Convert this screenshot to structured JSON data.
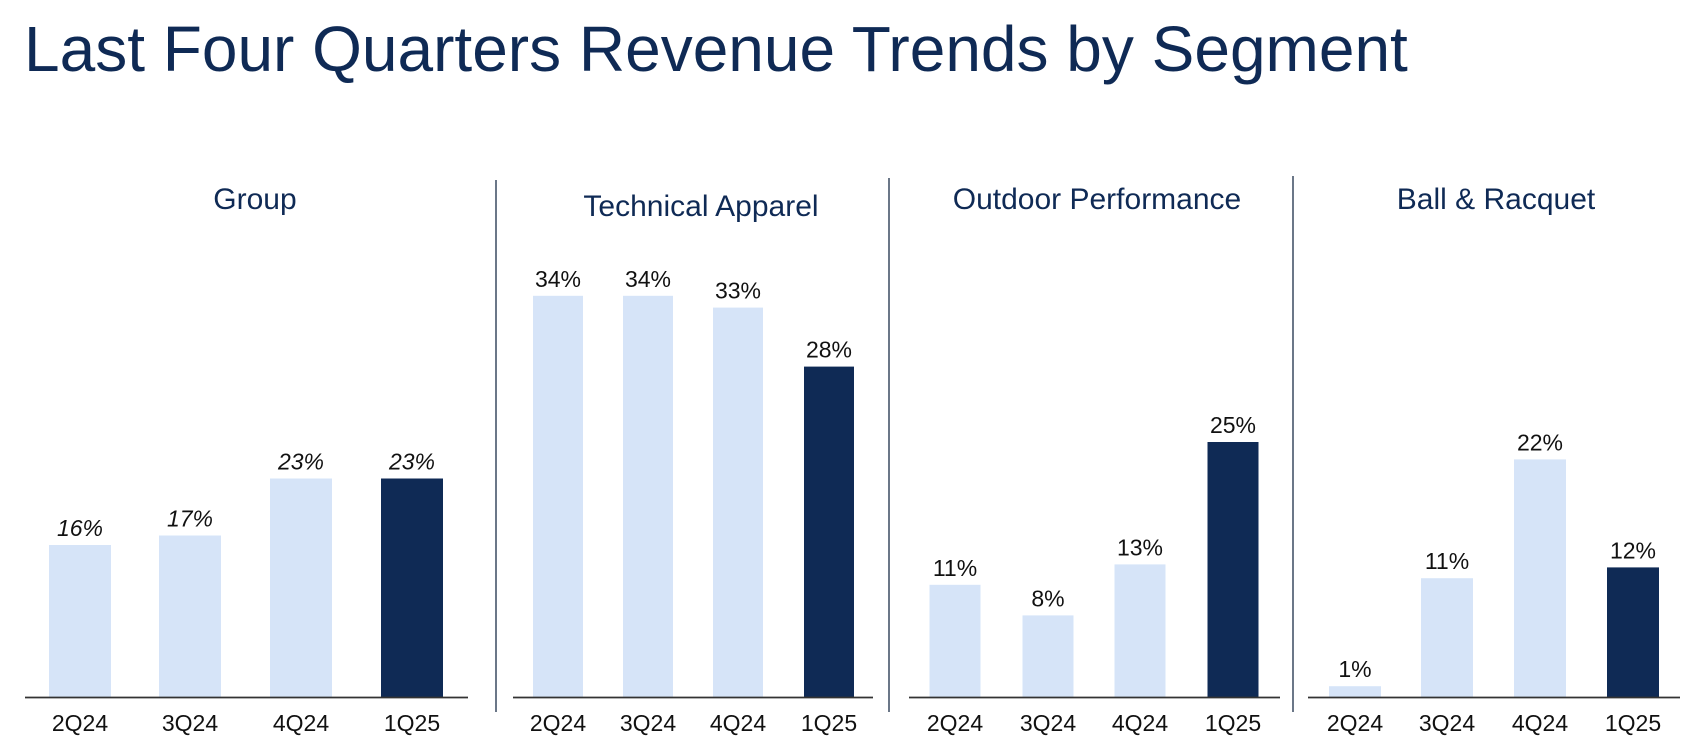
{
  "title": "Last Four Quarters Revenue Trends by Segment",
  "colors": {
    "title": "#0f2a55",
    "prior_quarter": "#d6e4f8",
    "current_quarter": "#0f2a55",
    "axis": "#333333"
  },
  "chart_data": [
    {
      "type": "bar",
      "title": "Group",
      "categories": [
        "2Q24",
        "3Q24",
        "4Q24",
        "1Q25"
      ],
      "values": [
        16,
        17,
        23,
        23
      ],
      "labels": [
        "16%",
        "17%",
        "23%",
        "23%"
      ],
      "label_style": "italic",
      "unit": "%",
      "highlight_index": 3,
      "grid": false
    },
    {
      "type": "bar",
      "title": "Technical Apparel",
      "categories": [
        "2Q24",
        "3Q24",
        "4Q24",
        "1Q25"
      ],
      "values": [
        34,
        34,
        33,
        28
      ],
      "labels": [
        "34%",
        "34%",
        "33%",
        "28%"
      ],
      "label_style": "normal",
      "unit": "%",
      "highlight_index": 3,
      "grid": false
    },
    {
      "type": "bar",
      "title": "Outdoor Performance",
      "categories": [
        "2Q24",
        "3Q24",
        "4Q24",
        "1Q25"
      ],
      "values": [
        11,
        8,
        13,
        25
      ],
      "labels": [
        "11%",
        "8%",
        "13%",
        "25%"
      ],
      "label_style": "normal",
      "unit": "%",
      "highlight_index": 3,
      "grid": false
    },
    {
      "type": "bar",
      "title": "Ball & Racquet",
      "categories": [
        "2Q24",
        "3Q24",
        "4Q24",
        "1Q25"
      ],
      "values": [
        1,
        11,
        22,
        12
      ],
      "labels": [
        "1%",
        "11%",
        "22%",
        "12%"
      ],
      "label_style": "normal",
      "unit": "%",
      "highlight_index": 3,
      "grid": false
    }
  ]
}
